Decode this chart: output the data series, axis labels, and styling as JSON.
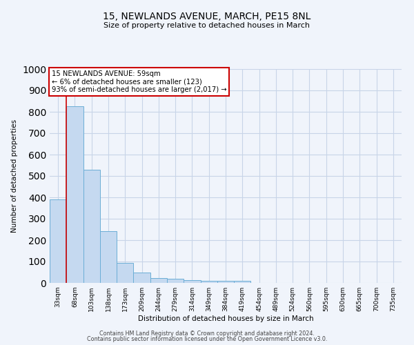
{
  "title": "15, NEWLANDS AVENUE, MARCH, PE15 8NL",
  "subtitle": "Size of property relative to detached houses in March",
  "xlabel": "Distribution of detached houses by size in March",
  "ylabel": "Number of detached properties",
  "bar_color": "#c5d9f0",
  "bar_edge_color": "#6baed6",
  "categories": [
    "33sqm",
    "68sqm",
    "103sqm",
    "138sqm",
    "173sqm",
    "209sqm",
    "244sqm",
    "279sqm",
    "314sqm",
    "349sqm",
    "384sqm",
    "419sqm",
    "454sqm",
    "489sqm",
    "524sqm",
    "560sqm",
    "595sqm",
    "630sqm",
    "665sqm",
    "700sqm",
    "735sqm"
  ],
  "values": [
    390,
    825,
    530,
    243,
    95,
    50,
    22,
    18,
    14,
    10,
    9,
    9,
    0,
    0,
    0,
    0,
    0,
    0,
    0,
    0,
    0
  ],
  "vline_color": "#cc0000",
  "vline_x_index": 0.5,
  "annotation_line1": "15 NEWLANDS AVENUE: 59sqm",
  "annotation_line2": "← 6% of detached houses are smaller (123)",
  "annotation_line3": "93% of semi-detached houses are larger (2,017) →",
  "annotation_box_color": "#cc0000",
  "ylim": [
    0,
    1000
  ],
  "yticks": [
    0,
    100,
    200,
    300,
    400,
    500,
    600,
    700,
    800,
    900,
    1000
  ],
  "footer_line1": "Contains HM Land Registry data © Crown copyright and database right 2024.",
  "footer_line2": "Contains public sector information licensed under the Open Government Licence v3.0.",
  "background_color": "#f0f4fb",
  "grid_color": "#c8d4e8"
}
